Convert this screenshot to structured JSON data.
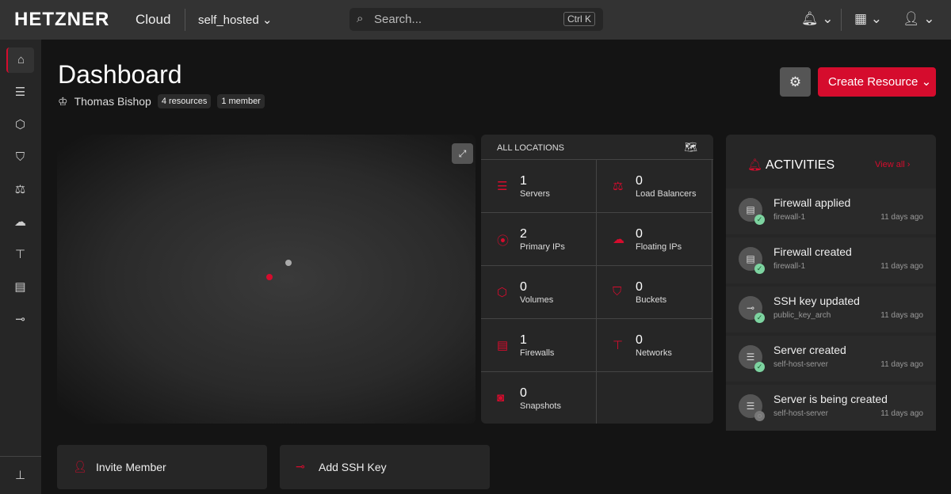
{
  "header": {
    "logo": "HETZNER",
    "product": "Cloud",
    "project": "self_hosted",
    "search_placeholder": "Search...",
    "search_shortcut": "Ctrl K"
  },
  "sidebar": {
    "items": [
      "home",
      "servers",
      "volumes",
      "buckets",
      "load-balancers",
      "floating-ips",
      "networks",
      "firewalls",
      "ssh-keys"
    ],
    "active": "home"
  },
  "page": {
    "title": "Dashboard",
    "owner": "Thomas Bishop",
    "resources_badge": "4 resources",
    "members_badge": "1 member",
    "create_label": "Create Resource"
  },
  "locations": {
    "title": "ALL LOCATIONS",
    "cells": [
      {
        "count": "1",
        "label": "Servers",
        "icon": "server-icon"
      },
      {
        "count": "0",
        "label": "Load Balancers",
        "icon": "load-balancer-icon"
      },
      {
        "count": "2",
        "label": "Primary IPs",
        "icon": "ip-pin-icon"
      },
      {
        "count": "0",
        "label": "Floating IPs",
        "icon": "floating-ip-icon"
      },
      {
        "count": "0",
        "label": "Volumes",
        "icon": "cube-icon"
      },
      {
        "count": "0",
        "label": "Buckets",
        "icon": "bucket-icon"
      },
      {
        "count": "1",
        "label": "Firewalls",
        "icon": "firewall-icon"
      },
      {
        "count": "0",
        "label": "Networks",
        "icon": "network-icon"
      },
      {
        "count": "0",
        "label": "Snapshots",
        "icon": "camera-icon"
      }
    ]
  },
  "activities": {
    "title": "ACTIVITIES",
    "view_all": "View all",
    "items": [
      {
        "title": "Firewall applied",
        "subject": "firewall-1",
        "time": "11 days ago",
        "status": "done"
      },
      {
        "title": "Firewall created",
        "subject": "firewall-1",
        "time": "11 days ago",
        "status": "done"
      },
      {
        "title": "SSH key updated",
        "subject": "public_key_arch",
        "time": "11 days ago",
        "status": "done"
      },
      {
        "title": "Server created",
        "subject": "self-host-server",
        "time": "11 days ago",
        "status": "done"
      },
      {
        "title": "Server is being created",
        "subject": "self-host-server",
        "time": "11 days ago",
        "status": "pending"
      }
    ]
  },
  "actions": {
    "invite": "Invite Member",
    "ssh": "Add SSH Key"
  },
  "colors": {
    "accent": "#d50c2d",
    "success": "#7dd3a0"
  }
}
